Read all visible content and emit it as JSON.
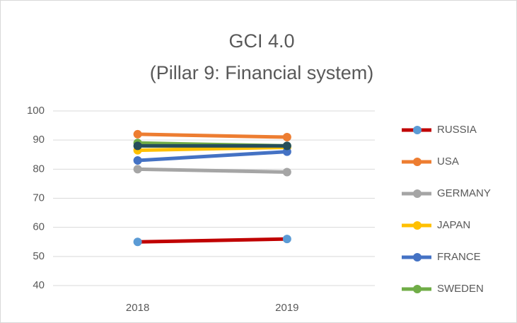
{
  "chart_data": {
    "type": "line",
    "title": "GCI 4.0",
    "subtitle": "(Pillar 9: Financial system)",
    "categories": [
      "2018",
      "2019"
    ],
    "ylim": [
      40,
      100
    ],
    "yticks": [
      40,
      50,
      60,
      70,
      80,
      90,
      100
    ],
    "grid": true,
    "legend": "right",
    "series": [
      {
        "name": "RUSSIA",
        "color": "#c00000",
        "marker_color": "#5b9bd5",
        "values": [
          55,
          56
        ]
      },
      {
        "name": "USA",
        "color": "#ed7d31",
        "values": [
          92,
          91
        ]
      },
      {
        "name": "GERMANY",
        "color": "#a5a5a5",
        "values": [
          80,
          79
        ]
      },
      {
        "name": "JAPAN",
        "color": "#ffc000",
        "values": [
          86.5,
          87.5
        ]
      },
      {
        "name": "FRANCE",
        "color": "#4472c4",
        "values": [
          83,
          86
        ]
      },
      {
        "name": "SWEDEN",
        "color": "#70ad47",
        "values": [
          89,
          88
        ]
      },
      {
        "color": "#264e5a",
        "values": [
          88,
          88
        ]
      }
    ]
  }
}
